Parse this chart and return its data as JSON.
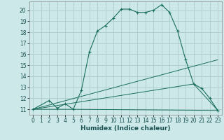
{
  "xlabel": "Humidex (Indice chaleur)",
  "background_color": "#cce8e8",
  "grid_color": "#b0d0d0",
  "line_color": "#1a6e5e",
  "xlim": [
    -0.5,
    23.5
  ],
  "ylim": [
    10.5,
    20.8
  ],
  "xticks": [
    0,
    1,
    2,
    3,
    4,
    5,
    6,
    7,
    8,
    9,
    10,
    11,
    12,
    13,
    14,
    15,
    16,
    17,
    18,
    19,
    20,
    21,
    22,
    23
  ],
  "yticks": [
    11,
    12,
    13,
    14,
    15,
    16,
    17,
    18,
    19,
    20
  ],
  "series1_x": [
    0,
    2,
    3,
    4,
    5,
    6,
    7,
    8,
    9,
    10,
    11,
    12,
    13,
    14,
    15,
    16,
    17,
    18,
    19,
    20,
    21,
    22,
    23
  ],
  "series1_y": [
    11,
    11.8,
    11.1,
    11.5,
    11.0,
    12.7,
    16.2,
    18.1,
    18.6,
    19.3,
    20.1,
    20.1,
    19.8,
    19.8,
    20.0,
    20.5,
    19.8,
    18.1,
    15.5,
    13.3,
    12.9,
    12.0,
    10.9
  ],
  "series2_x": [
    0,
    5,
    23
  ],
  "series2_y": [
    11,
    11.0,
    10.9
  ],
  "series3_x": [
    0,
    23
  ],
  "series3_y": [
    11,
    15.5
  ],
  "series4_x": [
    0,
    20,
    23
  ],
  "series4_y": [
    11,
    13.3,
    10.9
  ]
}
